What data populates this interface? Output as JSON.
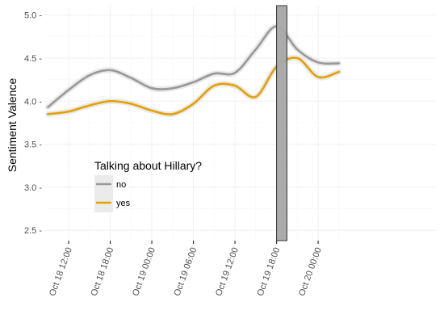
{
  "chart_data": {
    "type": "line",
    "title": "",
    "xlabel": "",
    "ylabel": "Sentiment Valence",
    "x_tick_labels": [
      "Oct 18 12:00",
      "Oct 18 18:00",
      "Oct 19 00:00",
      "Oct 19 06:00",
      "Oct 19 12:00",
      "Oct 19 18:00",
      "Oct 20 00:00"
    ],
    "x_range_hours": [
      -3.5,
      17.7
    ],
    "y_ticks": [
      2.5,
      3.0,
      3.5,
      4.0,
      4.5,
      5.0
    ],
    "y_tick_labels": [
      "2.5 -",
      "3.0 -",
      "3.5 -",
      "4.0 -",
      "4.5 -",
      "5.0 -"
    ],
    "ylim": [
      2.38,
      5.1
    ],
    "grid": true,
    "legend": {
      "title": "Talking about Hillary?",
      "placement": "inside-left"
    },
    "highlight_band": {
      "x_start_hour": 30.0,
      "x_end_hour": 31.5,
      "color": "#a6a6a6"
    },
    "series": [
      {
        "name": "no",
        "color": "#999999",
        "points": [
          {
            "x": "Oct 18 09:00",
            "y": 3.93
          },
          {
            "x": "Oct 18 12:00",
            "y": 4.13
          },
          {
            "x": "Oct 18 15:00",
            "y": 4.3
          },
          {
            "x": "Oct 18 18:00",
            "y": 4.36
          },
          {
            "x": "Oct 18 21:00",
            "y": 4.27
          },
          {
            "x": "Oct 19 00:00",
            "y": 4.15
          },
          {
            "x": "Oct 19 03:00",
            "y": 4.15
          },
          {
            "x": "Oct 19 06:00",
            "y": 4.22
          },
          {
            "x": "Oct 19 09:00",
            "y": 4.32
          },
          {
            "x": "Oct 19 12:00",
            "y": 4.33
          },
          {
            "x": "Oct 19 15:00",
            "y": 4.6
          },
          {
            "x": "Oct 19 18:00",
            "y": 4.87
          },
          {
            "x": "Oct 19 21:00",
            "y": 4.6
          },
          {
            "x": "Oct 20 00:00",
            "y": 4.45
          },
          {
            "x": "Oct 20 03:00",
            "y": 4.44
          }
        ]
      },
      {
        "name": "yes",
        "color": "#e6a000",
        "points": [
          {
            "x": "Oct 18 09:00",
            "y": 3.85
          },
          {
            "x": "Oct 18 12:00",
            "y": 3.88
          },
          {
            "x": "Oct 18 15:00",
            "y": 3.95
          },
          {
            "x": "Oct 18 18:00",
            "y": 4.0
          },
          {
            "x": "Oct 18 21:00",
            "y": 3.97
          },
          {
            "x": "Oct 19 00:00",
            "y": 3.89
          },
          {
            "x": "Oct 19 03:00",
            "y": 3.85
          },
          {
            "x": "Oct 19 06:00",
            "y": 3.97
          },
          {
            "x": "Oct 19 09:00",
            "y": 4.18
          },
          {
            "x": "Oct 19 12:00",
            "y": 4.18
          },
          {
            "x": "Oct 19 15:00",
            "y": 4.05
          },
          {
            "x": "Oct 19 18:00",
            "y": 4.4
          },
          {
            "x": "Oct 19 21:00",
            "y": 4.5
          },
          {
            "x": "Oct 20 00:00",
            "y": 4.28
          },
          {
            "x": "Oct 20 03:00",
            "y": 4.34
          }
        ]
      }
    ]
  }
}
